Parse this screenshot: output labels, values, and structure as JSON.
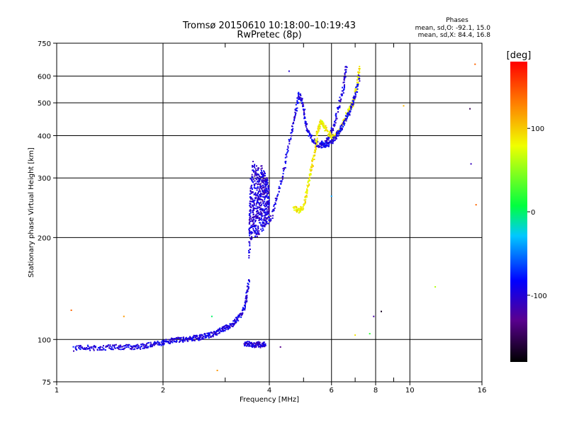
{
  "chart_data": {
    "type": "scatter",
    "title": "Tromsø 20150610 10:18:00–10:19:43",
    "subtitle": "RwPretec (8p)",
    "stats_heading": "Phases",
    "stats_lines": [
      "mean, sd,O: -92.1, 15.0",
      "mean, sd,X:  84.4, 16.8"
    ],
    "xlabel": "Frequency [MHz]",
    "ylabel": "Stationary phase Virtual Height [km]",
    "x_scale": "log",
    "y_scale": "log",
    "xlim": [
      1,
      16
    ],
    "ylim": [
      75,
      750
    ],
    "x_ticks": [
      1,
      2,
      4,
      6,
      8,
      10,
      16
    ],
    "x_tick_labels": [
      "1",
      "2",
      "4",
      "6",
      "8",
      "10",
      "16"
    ],
    "x_minor_ticks": [
      3,
      5,
      7,
      9
    ],
    "y_ticks": [
      75,
      100,
      200,
      300,
      400,
      500,
      600,
      750
    ],
    "y_tick_labels": [
      "75",
      "100",
      "200",
      "300",
      "400",
      "500",
      "600",
      "750"
    ],
    "grid": true,
    "colorbar": {
      "label": "[deg]",
      "range": [
        -180,
        180
      ],
      "ticks": [
        100,
        0,
        -100
      ],
      "tick_labels": [
        "100",
        "0",
        "-100"
      ]
    },
    "colors": {
      "o_mode": "#1f3fe8",
      "x_mode": "#d8e818"
    },
    "series": [
      {
        "trace": "o-low",
        "phase": -95,
        "x": [
          1.12,
          1.2,
          1.3,
          1.4,
          1.5,
          1.6,
          1.7,
          1.8,
          1.9,
          2.0,
          2.1,
          2.2,
          2.3,
          2.4,
          2.5,
          2.6,
          2.7,
          2.8,
          2.9,
          3.0,
          3.1,
          3.2,
          3.3,
          3.4,
          3.45,
          3.5
        ],
        "y": [
          94,
          95,
          94,
          95,
          95,
          95,
          95,
          96,
          97,
          98,
          99,
          100,
          100,
          101,
          101,
          102,
          103,
          104,
          106,
          108,
          110,
          113,
          117,
          123,
          135,
          150
        ]
      },
      {
        "trace": "o-spread",
        "phase": -100,
        "x": [
          3.5,
          3.55,
          3.6,
          3.65,
          3.7,
          3.75,
          3.8,
          3.85,
          3.9,
          3.95,
          4.0
        ],
        "y_min": [
          165,
          195,
          200,
          200,
          200,
          205,
          205,
          210,
          215,
          220,
          225
        ],
        "y_max": [
          200,
          330,
          340,
          330,
          325,
          320,
          330,
          320,
          310,
          300,
          280
        ]
      },
      {
        "trace": "o-f1",
        "phase": -95,
        "x": [
          4.0,
          4.2,
          4.4,
          4.6,
          4.75,
          4.85,
          4.95,
          5.05,
          5.15,
          5.3,
          5.5,
          5.7,
          5.9,
          6.1,
          6.3,
          6.5,
          6.6
        ],
        "y": [
          220,
          260,
          320,
          400,
          470,
          530,
          510,
          450,
          410,
          390,
          375,
          375,
          395,
          430,
          490,
          560,
          640
        ]
      },
      {
        "trace": "x-f2",
        "phase": 88,
        "x": [
          4.7,
          4.85,
          5.0,
          5.1,
          5.2,
          5.3,
          5.4,
          5.5,
          5.6,
          5.7,
          5.9,
          6.1,
          6.3,
          6.5,
          6.7,
          6.9,
          7.1,
          7.2
        ],
        "y": [
          245,
          240,
          245,
          270,
          300,
          330,
          370,
          420,
          440,
          430,
          405,
          395,
          410,
          440,
          470,
          500,
          560,
          640
        ]
      },
      {
        "trace": "o-f2-inner",
        "phase": -90,
        "x": [
          5.6,
          5.8,
          6.0,
          6.2,
          6.4,
          6.6,
          6.8,
          7.0,
          7.2
        ],
        "y": [
          380,
          375,
          380,
          400,
          420,
          450,
          480,
          520,
          600
        ]
      },
      {
        "trace": "o-ground",
        "phase": -100,
        "x": [
          3.4,
          3.5,
          3.6,
          3.7,
          3.8,
          3.9
        ],
        "y": [
          97,
          97,
          96,
          97,
          96,
          97
        ]
      },
      {
        "trace": "scatter",
        "phase": 0,
        "x": [
          1.1,
          1.55,
          2.75,
          2.85,
          4.3,
          4.55,
          6.0,
          7.0,
          7.7,
          7.9,
          8.3,
          9.6,
          11.8,
          14.8,
          14.9,
          15.3,
          15.4
        ],
        "y": [
          122,
          117,
          117,
          81,
          95,
          620,
          265,
          103,
          104,
          117,
          121,
          490,
          143,
          480,
          330,
          650,
          250
        ],
        "p": [
          140,
          120,
          0,
          120,
          -130,
          -100,
          -40,
          90,
          20,
          -120,
          -170,
          110,
          60,
          -150,
          -110,
          140,
          140
        ]
      }
    ]
  }
}
